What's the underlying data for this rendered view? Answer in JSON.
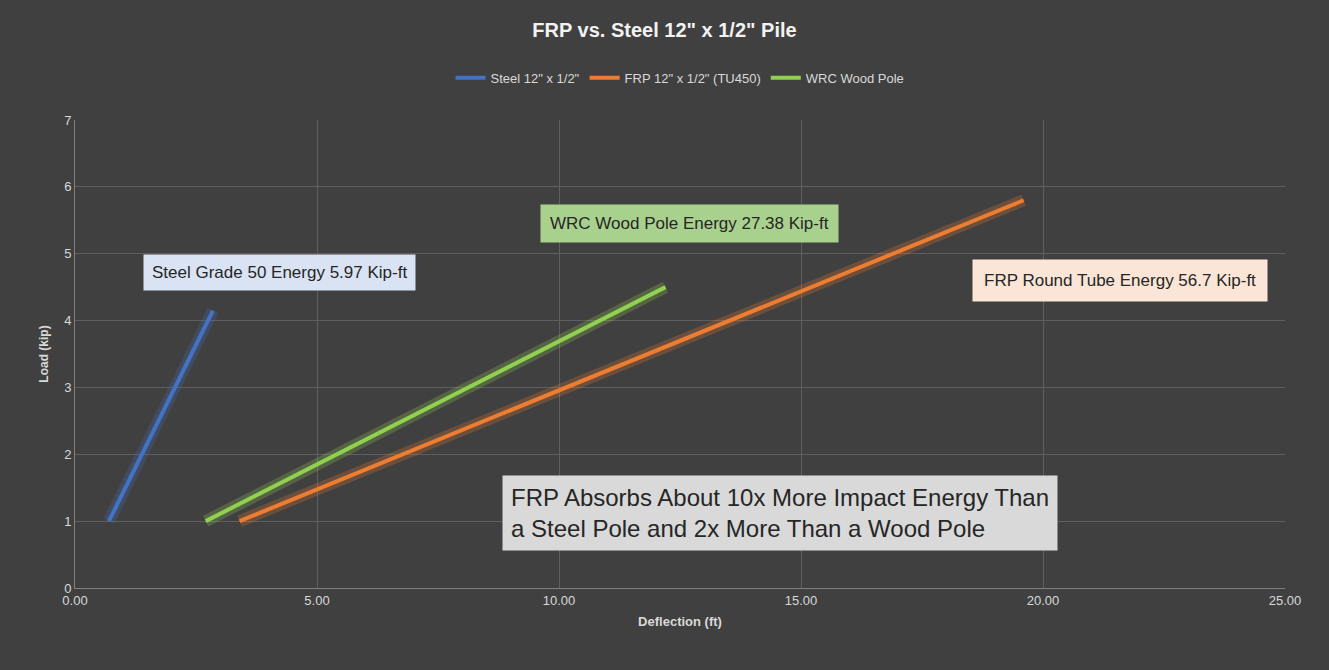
{
  "chart_data": {
    "type": "line",
    "title": "FRP vs. Steel 12\" x 1/2\" Pile",
    "x_label": "Deflection (ft)",
    "y_label": "Load (kip)",
    "series": [
      {
        "name": "Steel 12\" x 1/2\"",
        "color": "#4472c4",
        "x": [
          0.7,
          2.85
        ],
        "values": [
          1,
          4.15
        ]
      },
      {
        "name": "FRP 12\" x 1/2\" (TU450)",
        "color": "#ed7d31",
        "x": [
          3.4,
          19.6
        ],
        "values": [
          1,
          5.8
        ]
      },
      {
        "name": "WRC Wood Pole",
        "color": "#92d050",
        "x": [
          2.7,
          12.2
        ],
        "values": [
          1,
          4.5
        ]
      }
    ],
    "xlim": [
      0,
      25
    ],
    "xticks": [
      {
        "value": 0,
        "label": "0.00"
      },
      {
        "value": 5,
        "label": "5.00"
      },
      {
        "value": 10,
        "label": "10.00"
      },
      {
        "value": 15,
        "label": "15.00"
      },
      {
        "value": 20,
        "label": "20.00"
      },
      {
        "value": 25,
        "label": "25.00"
      }
    ],
    "ylim": [
      0,
      7
    ],
    "yticks": [
      0,
      1,
      2,
      3,
      4,
      5,
      6,
      7
    ],
    "grid": true,
    "legend": "top",
    "annotations": [
      "Steel Grade 50 Energy 5.97 Kip-ft",
      "WRC Wood Pole Energy 27.38 Kip-ft",
      "FRP Round Tube Energy 56.7 Kip-ft",
      "FRP Absorbs About 10x More Impact Energy Than a Steel Pole and 2x More Than a Wood Pole"
    ]
  }
}
